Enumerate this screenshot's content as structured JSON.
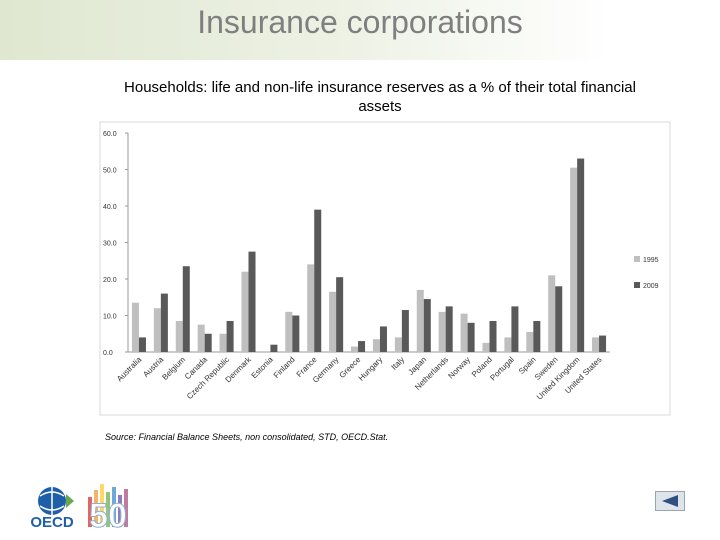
{
  "header": {
    "title": "Insurance corporations"
  },
  "logo": {
    "text": "OECD",
    "anniversary": "50"
  },
  "chart_data": {
    "type": "bar",
    "title": "Households: life and non-life insurance reserves as a % of their total financial assets",
    "source": "Source: Financial Balance Sheets, non consolidated, STD, OECD.Stat.",
    "categories": [
      "Australia",
      "Austria",
      "Belgium",
      "Canada",
      "Czech Republic",
      "Denmark",
      "Estonia",
      "Finland",
      "France",
      "Germany",
      "Greece",
      "Hungary",
      "Italy",
      "Japan",
      "Netherlands",
      "Norway",
      "Poland",
      "Portugal",
      "Spain",
      "Sweden",
      "United Kingdom",
      "United States"
    ],
    "series": [
      {
        "name": "1995",
        "color": "#bfbfbf",
        "values": [
          13.5,
          12,
          8.5,
          7.5,
          5,
          22,
          null,
          11,
          24,
          16.5,
          1.5,
          3.5,
          4,
          17,
          11,
          10.5,
          2.5,
          4,
          5.5,
          21,
          50.5,
          4
        ]
      },
      {
        "name": "2009",
        "color": "#595959",
        "values": [
          4,
          16,
          23.5,
          5,
          8.5,
          27.5,
          2,
          10,
          39,
          20.5,
          3,
          7,
          11.5,
          14.5,
          12.5,
          8,
          8.5,
          12.5,
          8.5,
          18,
          53,
          4.5
        ]
      }
    ],
    "ylim": [
      0,
      60
    ],
    "yticks": [
      {
        "value": 0,
        "label": "0.0"
      },
      {
        "value": 10,
        "label": "10.0"
      },
      {
        "value": 20,
        "label": "20.0"
      },
      {
        "value": 30,
        "label": "30.0"
      },
      {
        "value": 40,
        "label": "40.0"
      },
      {
        "value": 50,
        "label": "50.0"
      },
      {
        "value": 60,
        "label": "60.0"
      }
    ],
    "grid": false,
    "legend": "right"
  }
}
